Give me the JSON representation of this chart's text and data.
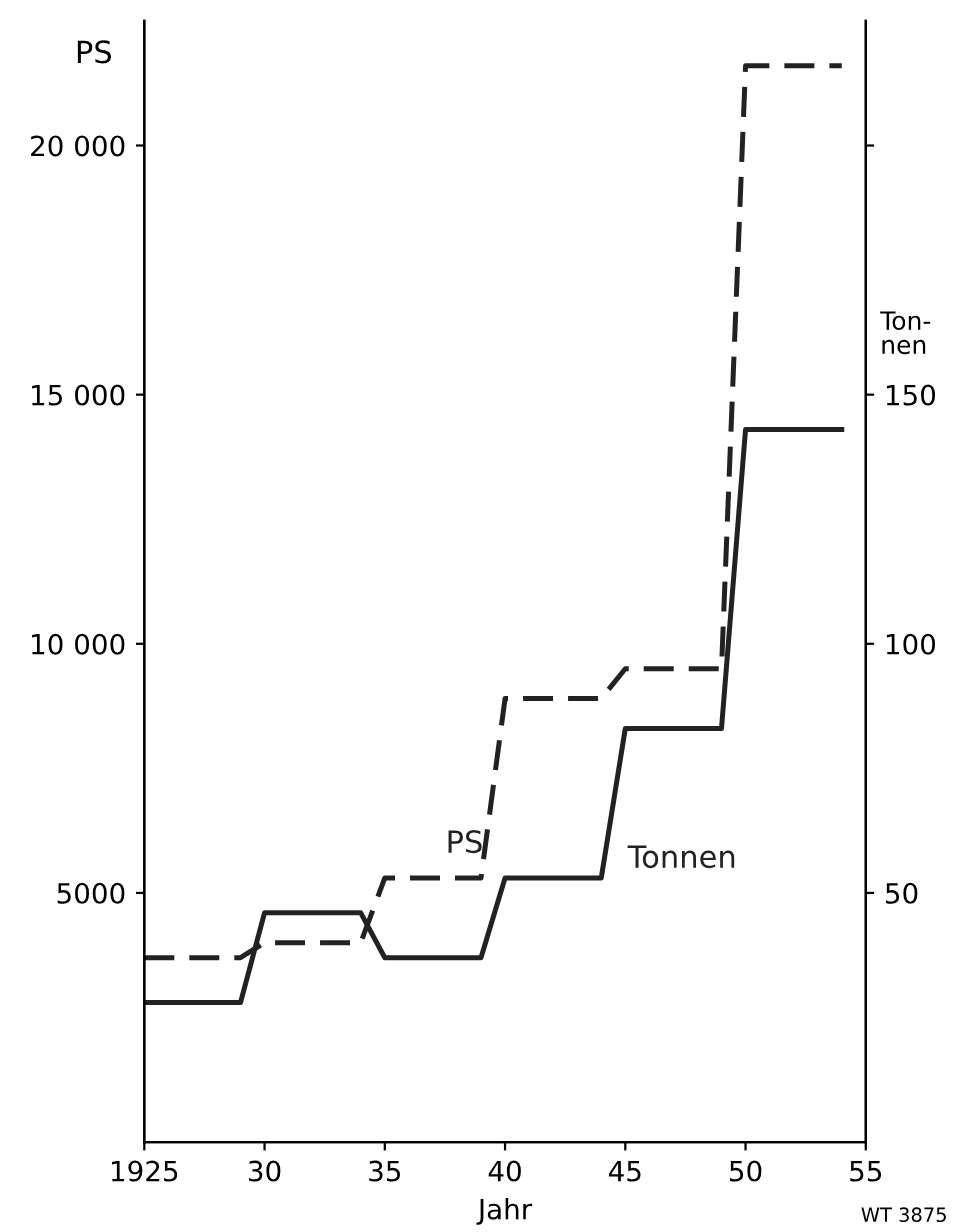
{
  "chart_data": {
    "type": "line",
    "xlabel": "Jahr",
    "ylabel": "PS",
    "y2label": "Ton-\nnen",
    "x": [
      1925,
      1929,
      1930,
      1934,
      1935,
      1939,
      1940,
      1944,
      1945,
      1949,
      1950,
      1954
    ],
    "series": [
      {
        "name": "PS",
        "color": "#222222",
        "line_style": "dashed",
        "values": [
          3700,
          3700,
          4000,
          4000,
          5300,
          5300,
          8900,
          8900,
          9500,
          9500,
          21600,
          21600
        ]
      },
      {
        "name": "Tonnen",
        "color": "#222222",
        "line_style": "solid",
        "axis": "y2",
        "values": [
          28,
          28,
          46,
          46,
          37,
          37,
          53,
          53,
          83,
          83,
          143,
          143
        ]
      }
    ],
    "xlim": [
      1925,
      1955
    ],
    "xticks": [
      {
        "value": 1925,
        "label": "1925"
      },
      {
        "value": 1930,
        "label": "30"
      },
      {
        "value": 1935,
        "label": "35"
      },
      {
        "value": 1940,
        "label": "40"
      },
      {
        "value": 1945,
        "label": "45"
      },
      {
        "value": 1950,
        "label": "50"
      },
      {
        "value": 1955,
        "label": "55"
      }
    ],
    "ylim": [
      0,
      22500
    ],
    "yticks": [
      5000,
      {
        "value": 10000,
        "label": "10 000"
      },
      {
        "value": 15000,
        "label": "15 000"
      },
      {
        "value": 20000,
        "label": "20 000"
      }
    ],
    "y2lim": [
      0,
      225
    ],
    "y2ticks": [
      50,
      100,
      150,
      {
        "value": 200,
        "label": null
      }
    ],
    "annotations": [
      "WT 3875"
    ],
    "grid": false,
    "legend": false,
    "marker": "none"
  }
}
